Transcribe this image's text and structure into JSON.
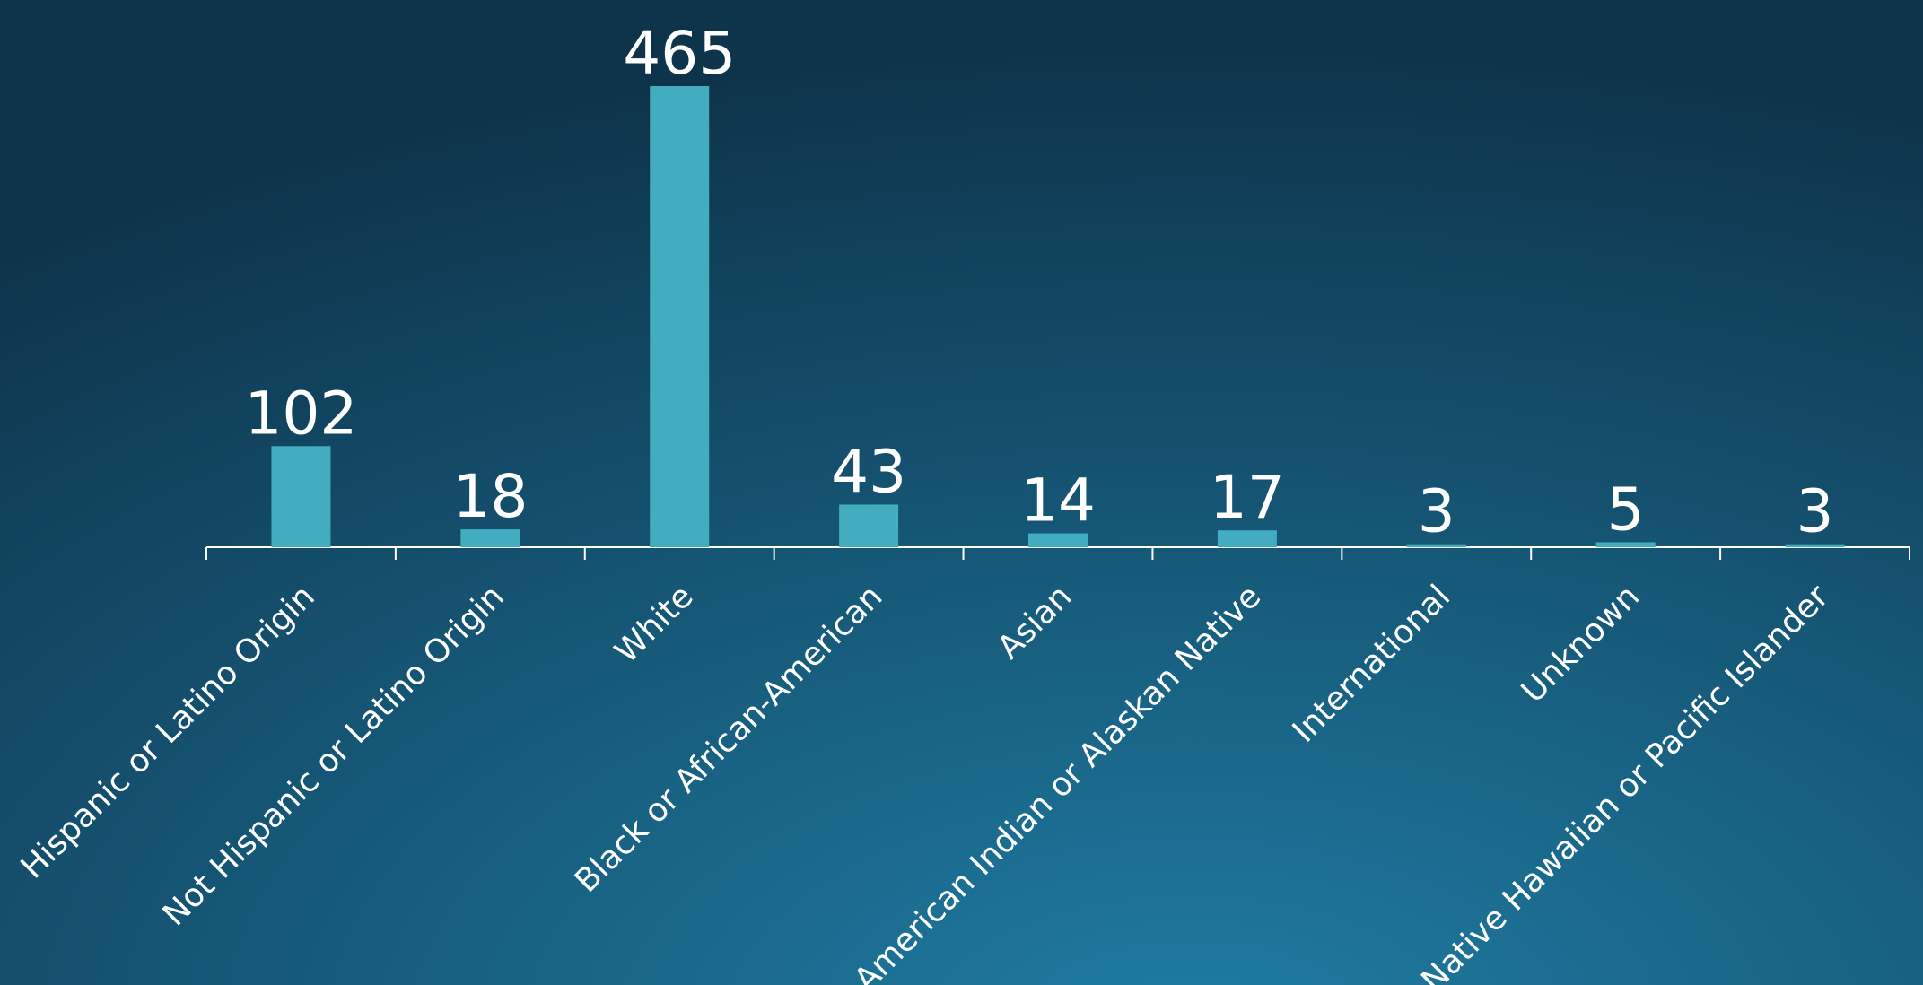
{
  "chart_data": {
    "type": "bar",
    "categories": [
      "Hispanic or Latino Origin",
      "Not Hispanic or Latino Origin",
      "White",
      "Black or African-American",
      "Asian",
      "American Indian or Alaskan Native",
      "International",
      "Unknown",
      "Native Hawaiian or Pacific Islander"
    ],
    "values": [
      102,
      18,
      465,
      43,
      14,
      17,
      3,
      5,
      3
    ],
    "color": "#41adbe"
  }
}
